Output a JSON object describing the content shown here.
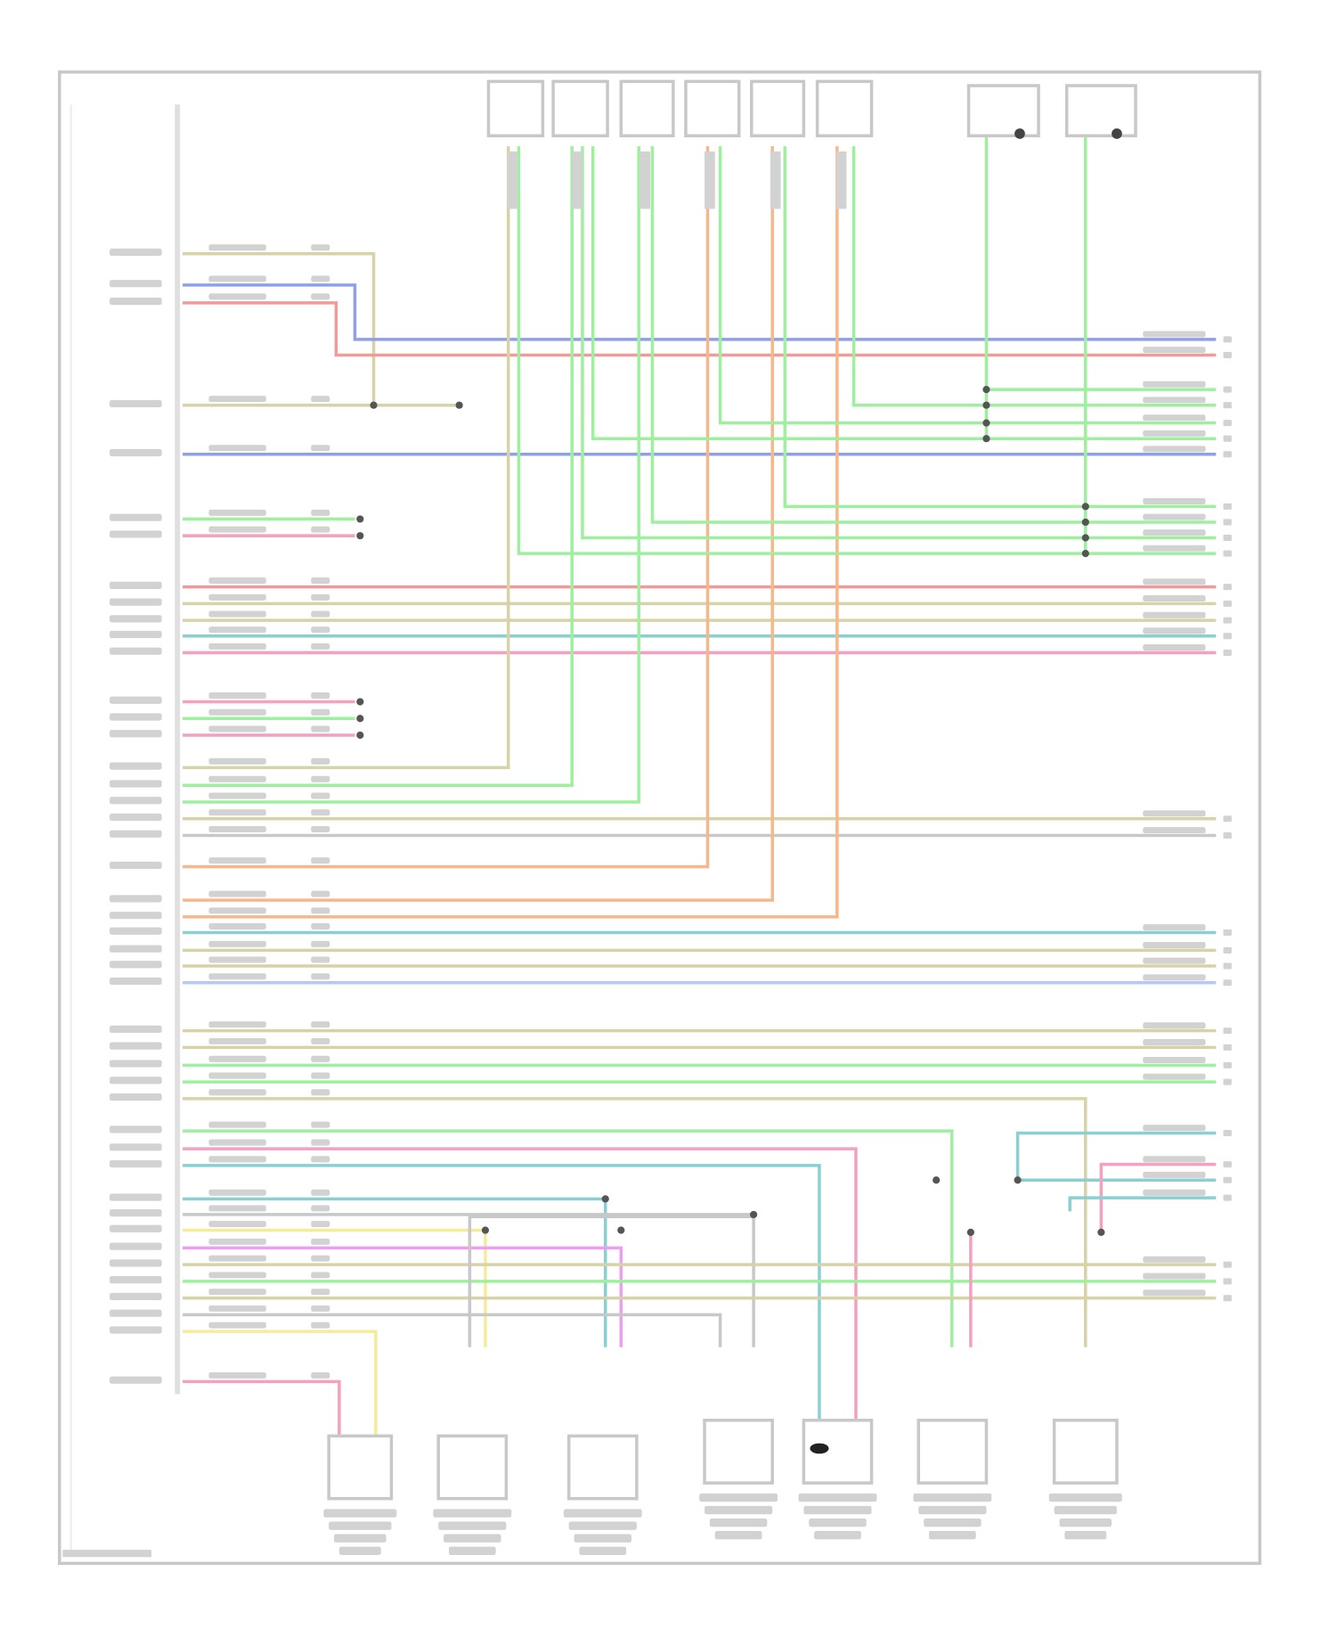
{
  "diagram": {
    "type": "wiring-diagram",
    "frame_color": "#c8c8c8",
    "label_color": "#d2d2d2",
    "wire_colors": {
      "tan": "#d8d2a8",
      "blue": "#8fa0e8",
      "red": "#f29a9a",
      "green": "#9ef09e",
      "pink": "#f4a0c0",
      "teal": "#8ccfd0",
      "orange": "#f6b88a",
      "gray": "#c8c8c8",
      "yellow": "#f4ec9a",
      "violet": "#ee9ef0",
      "lightblue": "#b8c8f4"
    }
  }
}
